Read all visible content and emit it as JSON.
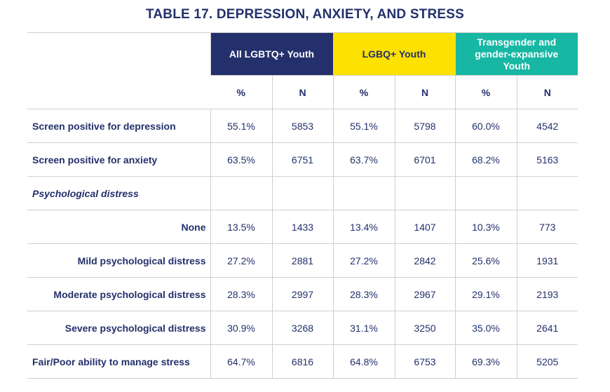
{
  "title": "TABLE 17. DEPRESSION, ANXIETY, AND STRESS",
  "groups": [
    {
      "label": "All LGBTQ+ Youth",
      "color": "#23306b"
    },
    {
      "label": "LGBQ+ Youth",
      "color": "#fde100"
    },
    {
      "label": "Transgender and gender-expansive Youth",
      "color": "#17b7a4"
    }
  ],
  "subheaders": [
    "%",
    "N",
    "%",
    "N",
    "%",
    "N"
  ],
  "rows": [
    {
      "label": "Screen positive for depression",
      "values": [
        "55.1%",
        "5853",
        "55.1%",
        "5798",
        "60.0%",
        "4542"
      ]
    },
    {
      "label": "Screen positive for anxiety",
      "values": [
        "63.5%",
        "6751",
        "63.7%",
        "6701",
        "68.2%",
        "5163"
      ]
    },
    {
      "label": "Psychological distress",
      "values": [
        "",
        "",
        "",
        "",
        "",
        ""
      ]
    },
    {
      "label": "None",
      "values": [
        "13.5%",
        "1433",
        "13.4%",
        "1407",
        "10.3%",
        "773"
      ]
    },
    {
      "label": "Mild psychological distress",
      "values": [
        "27.2%",
        "2881",
        "27.2%",
        "2842",
        "25.6%",
        "1931"
      ]
    },
    {
      "label": "Moderate psychological distress",
      "values": [
        "28.3%",
        "2997",
        "28.3%",
        "2967",
        "29.1%",
        "2193"
      ]
    },
    {
      "label": "Severe psychological distress",
      "values": [
        "30.9%",
        "3268",
        "31.1%",
        "3250",
        "35.0%",
        "2641"
      ]
    },
    {
      "label": "Fair/Poor ability to manage stress",
      "values": [
        "64.7%",
        "6816",
        "64.8%",
        "6753",
        "69.3%",
        "5205"
      ]
    }
  ]
}
